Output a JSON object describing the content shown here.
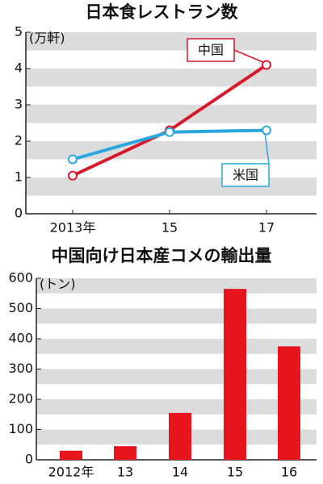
{
  "chart_data": [
    {
      "type": "line",
      "title": "日本食レストラン数",
      "unit": "(万軒)",
      "categories": [
        "2013年",
        "15",
        "17"
      ],
      "series": [
        {
          "name": "中国",
          "color": "#d7192a",
          "values": [
            1.05,
            2.3,
            4.1
          ]
        },
        {
          "name": "米国",
          "color": "#2aa7e0",
          "values": [
            1.5,
            2.25,
            2.3
          ]
        }
      ],
      "ylim": [
        0,
        5
      ],
      "yticks": [
        0,
        1,
        2,
        3,
        4,
        5
      ],
      "grid": true
    },
    {
      "type": "bar",
      "title": "中国向け日本産コメの輸出量",
      "unit": "(トン)",
      "categories": [
        "2012年",
        "13",
        "14",
        "15",
        "16"
      ],
      "values": [
        30,
        45,
        155,
        565,
        375
      ],
      "color": "#e8141e",
      "ylim": [
        0,
        600
      ],
      "yticks": [
        0,
        100,
        200,
        300,
        400,
        500,
        600
      ],
      "grid": true
    }
  ]
}
